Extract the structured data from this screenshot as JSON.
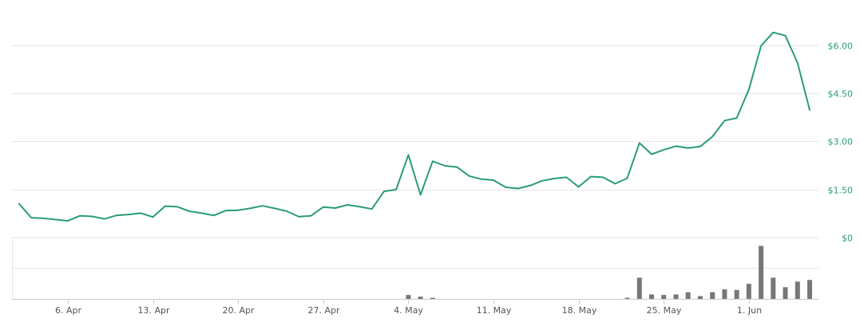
{
  "chart_data": [
    {
      "type": "line",
      "series": [
        {
          "values": [
            1.05,
            0.62,
            0.6,
            0.56,
            0.52,
            0.68,
            0.66,
            0.58,
            0.69,
            0.72,
            0.76,
            0.64,
            0.98,
            0.96,
            0.82,
            0.76,
            0.69,
            0.84,
            0.85,
            0.91,
            0.99,
            0.91,
            0.82,
            0.65,
            0.68,
            0.95,
            0.92,
            1.02,
            0.96,
            0.89,
            1.44,
            1.5,
            2.58,
            1.33,
            2.38,
            2.24,
            2.2,
            1.92,
            1.82,
            1.79,
            1.57,
            1.53,
            1.62,
            1.77,
            1.84,
            1.88,
            1.58,
            1.9,
            1.88,
            1.68,
            1.85,
            2.95,
            2.6,
            2.74,
            2.85,
            2.79,
            2.84,
            3.15,
            3.65,
            3.73,
            4.62,
            5.98,
            6.4,
            6.3,
            5.45,
            3.98
          ]
        }
      ],
      "x_labels": [
        "6. Apr",
        "13. Apr",
        "20. Apr",
        "27. Apr",
        "4. May",
        "11. May",
        "18. May",
        "25. May",
        "1. Jun"
      ],
      "y_ticks": [
        "$0",
        "$1.50",
        "$3.00",
        "$4.50",
        "$6.00"
      ],
      "y_tick_values": [
        0,
        1.5,
        3.0,
        4.5,
        6.0
      ],
      "ylim": [
        0,
        7.2
      ],
      "grid": true,
      "color": "#2a9d6f"
    },
    {
      "type": "bar",
      "series": [
        {
          "values": [
            0,
            0,
            0,
            0,
            0,
            0,
            0,
            0,
            0,
            0,
            0,
            0,
            0,
            0,
            0,
            0,
            0,
            0,
            0,
            0,
            0,
            0,
            0,
            0,
            0,
            0,
            0,
            0,
            0,
            0,
            0,
            0,
            0.07,
            0.04,
            0.02,
            0,
            0,
            0,
            0,
            0,
            0,
            0,
            0,
            0,
            0,
            0,
            0,
            0,
            0,
            0,
            0.02,
            0.38,
            0.08,
            0.07,
            0.08,
            0.12,
            0.05,
            0.12,
            0.17,
            0.16,
            0.27,
            0.95,
            0.38,
            0.21,
            0.31,
            0.34
          ]
        }
      ],
      "ylim": [
        0,
        1.1
      ],
      "grid": true,
      "color": "#777777"
    }
  ]
}
